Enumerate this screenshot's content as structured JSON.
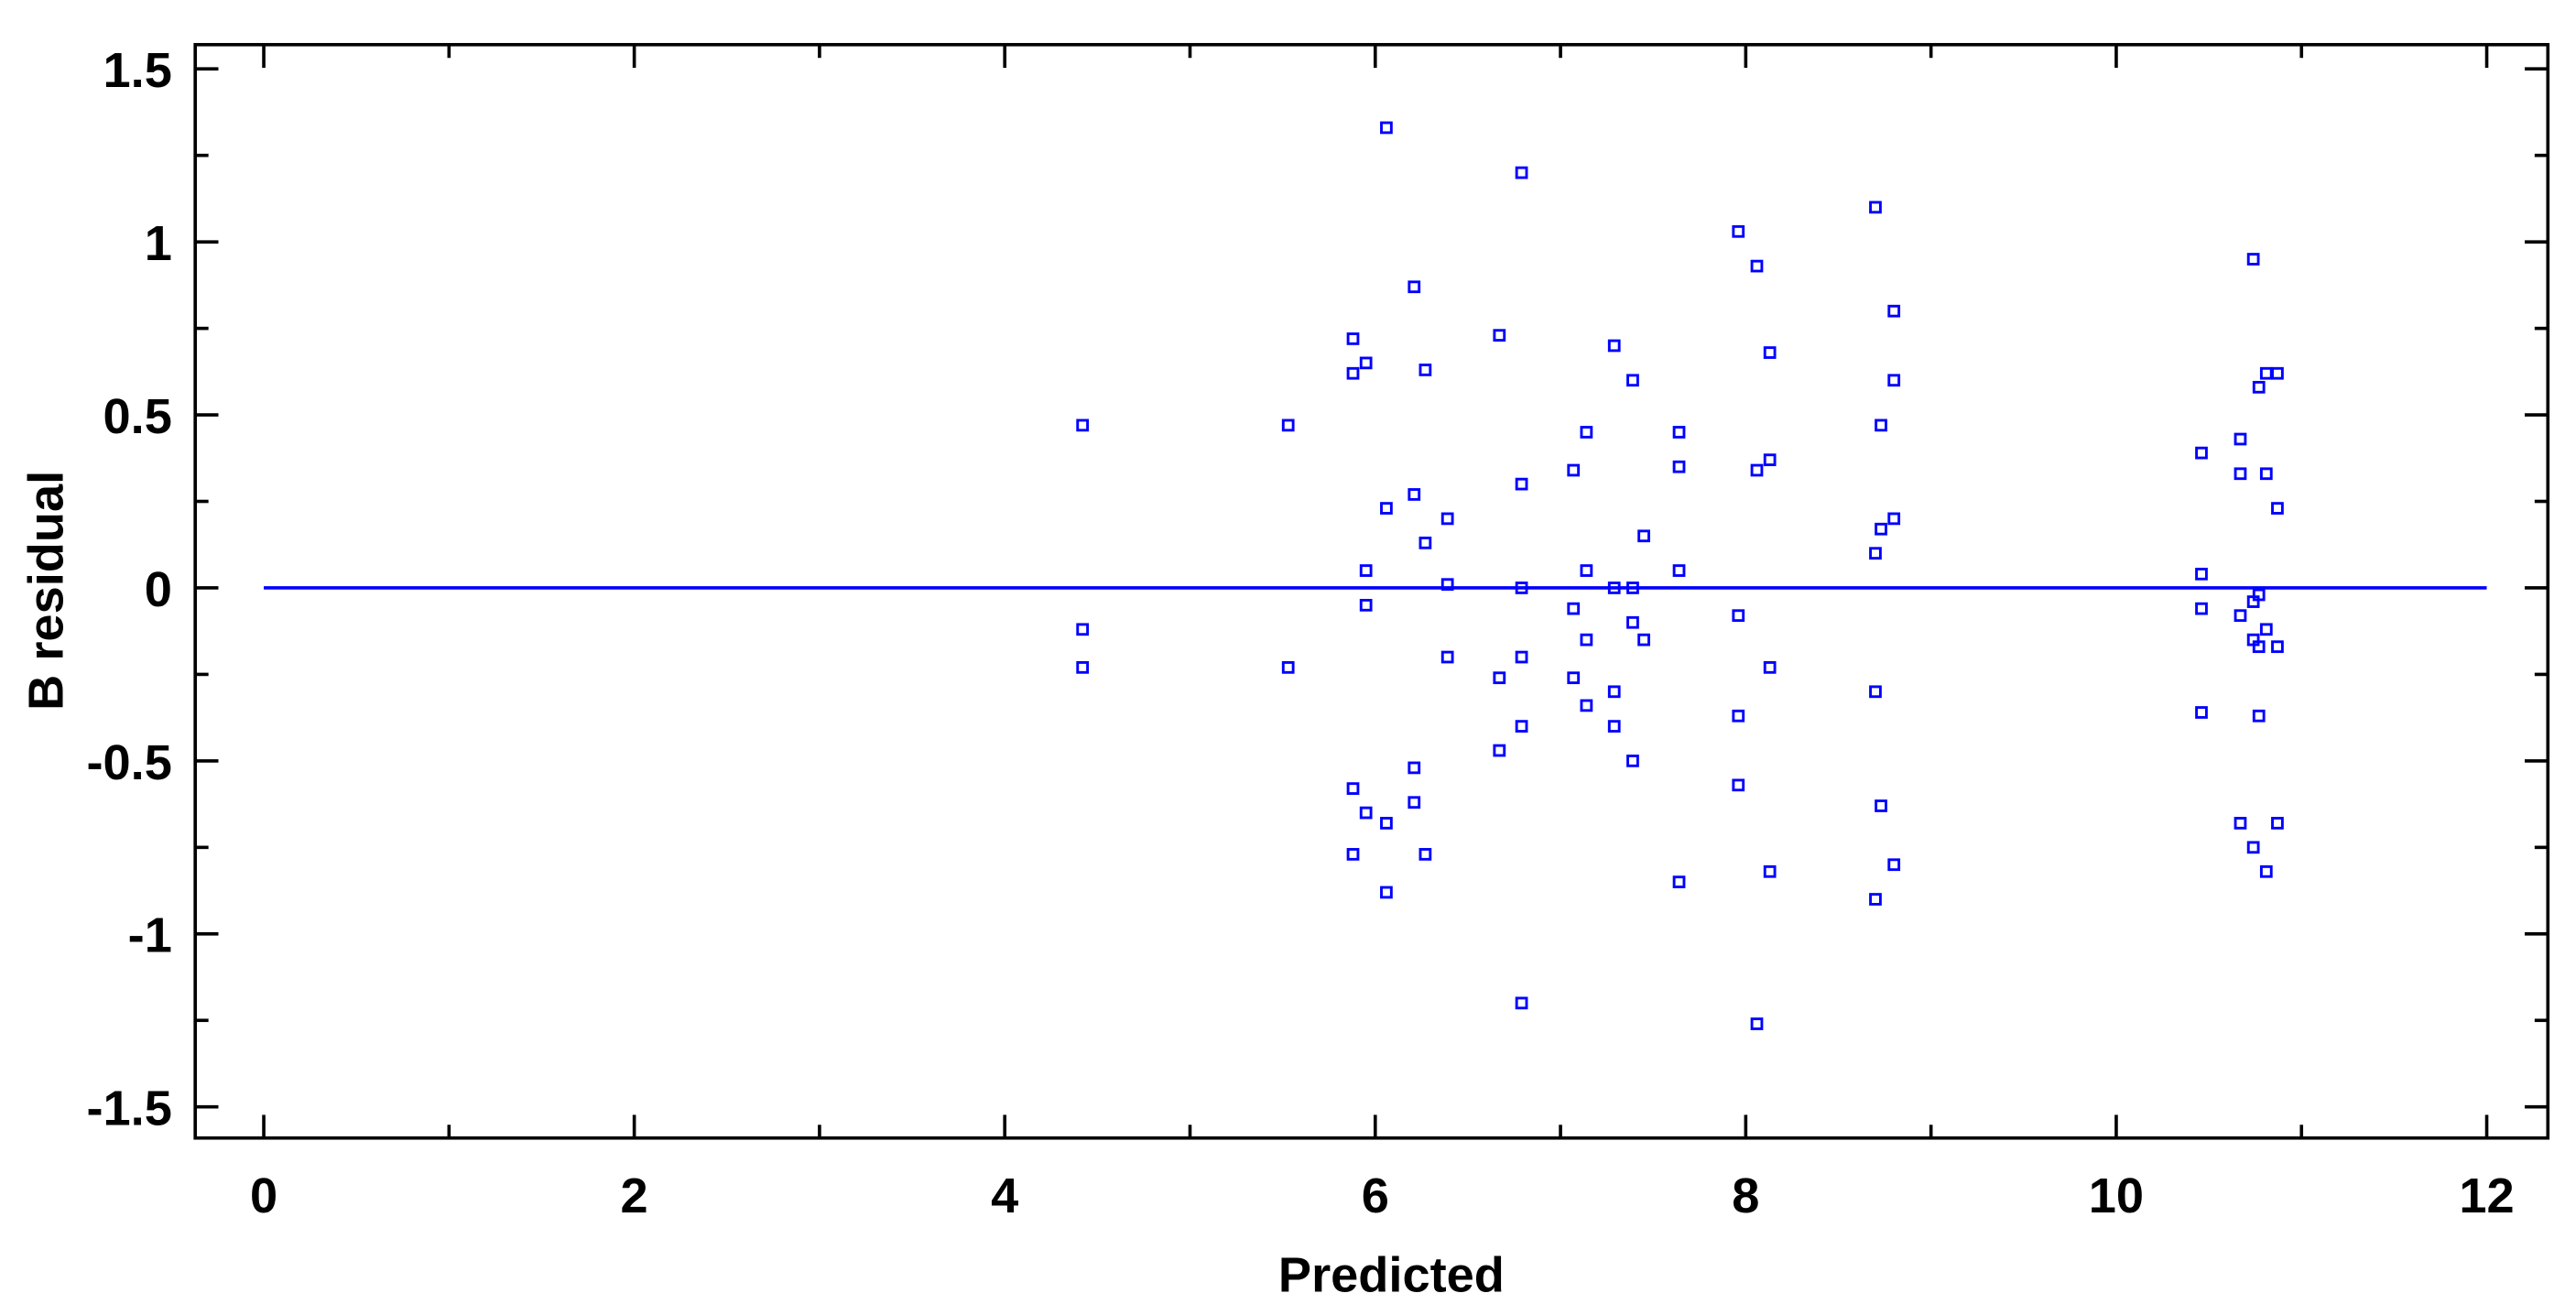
{
  "chart_data": {
    "type": "scatter",
    "xlabel": "Predicted",
    "ylabel": "B residual",
    "xlim": [
      -0.37,
      12.33
    ],
    "ylim": [
      -1.59,
      1.57
    ],
    "xticks": [
      0,
      2,
      4,
      6,
      8,
      10,
      12
    ],
    "yticks": [
      -1.5,
      -1,
      -0.5,
      0,
      0.5,
      1,
      1.5
    ],
    "reference_line": {
      "y": 0,
      "x": [
        0,
        12
      ],
      "color": "#0000ff"
    },
    "series": [
      {
        "color": "#0000ff",
        "x": [
          4.42,
          4.42,
          4.42,
          5.53,
          5.53,
          5.88,
          5.88,
          5.88,
          5.88,
          5.95,
          5.95,
          5.95,
          5.95,
          6.06,
          6.06,
          6.06,
          6.06,
          6.21,
          6.21,
          6.21,
          6.21,
          6.27,
          6.27,
          6.27,
          6.39,
          6.39,
          6.39,
          6.67,
          6.67,
          6.67,
          6.79,
          6.79,
          6.79,
          6.79,
          6.79,
          6.79,
          7.07,
          7.07,
          7.07,
          7.14,
          7.14,
          7.14,
          7.14,
          7.29,
          7.29,
          7.29,
          7.29,
          7.39,
          7.39,
          7.39,
          7.39,
          7.45,
          7.45,
          7.64,
          7.64,
          7.64,
          7.64,
          7.96,
          7.96,
          7.96,
          7.96,
          8.06,
          8.06,
          8.06,
          8.13,
          8.13,
          8.13,
          8.13,
          8.7,
          8.7,
          8.7,
          8.7,
          8.73,
          8.73,
          8.73,
          8.8,
          8.8,
          8.8,
          8.8,
          10.46,
          10.46,
          10.46,
          10.46,
          10.67,
          10.67,
          10.67,
          10.67,
          10.74,
          10.74,
          10.74,
          10.74,
          10.77,
          10.77,
          10.77,
          10.77,
          10.81,
          10.81,
          10.81,
          10.81,
          10.87,
          10.87,
          10.87,
          10.87
        ],
        "values": [
          0.47,
          -0.12,
          -0.23,
          0.47,
          -0.23,
          0.72,
          0.62,
          -0.58,
          -0.77,
          0.65,
          0.05,
          -0.05,
          -0.65,
          1.33,
          0.23,
          -0.68,
          -0.88,
          0.87,
          0.27,
          -0.52,
          -0.62,
          0.63,
          0.13,
          -0.77,
          0.2,
          0.01,
          -0.2,
          0.73,
          -0.26,
          -0.47,
          1.2,
          0.3,
          0,
          -0.2,
          -0.4,
          -1.2,
          0.34,
          -0.06,
          -0.26,
          0.45,
          0.05,
          -0.15,
          -0.34,
          0.7,
          0,
          -0.3,
          -0.4,
          0.6,
          0,
          -0.1,
          -0.5,
          0.15,
          -0.15,
          0.45,
          0.35,
          0.05,
          -0.85,
          1.03,
          -0.08,
          -0.37,
          -0.57,
          0.93,
          0.34,
          -1.26,
          0.68,
          0.37,
          -0.23,
          -0.82,
          1.1,
          0.1,
          -0.3,
          -0.9,
          0.47,
          0.17,
          -0.63,
          0.8,
          0.6,
          0.2,
          -0.8,
          0.39,
          0.04,
          -0.06,
          -0.36,
          0.43,
          0.33,
          -0.08,
          -0.68,
          0.95,
          -0.04,
          -0.15,
          -0.75,
          0.58,
          -0.02,
          -0.17,
          -0.37,
          0.62,
          0.33,
          -0.12,
          -0.82,
          0.62,
          0.23,
          -0.17,
          -0.68
        ]
      }
    ]
  }
}
